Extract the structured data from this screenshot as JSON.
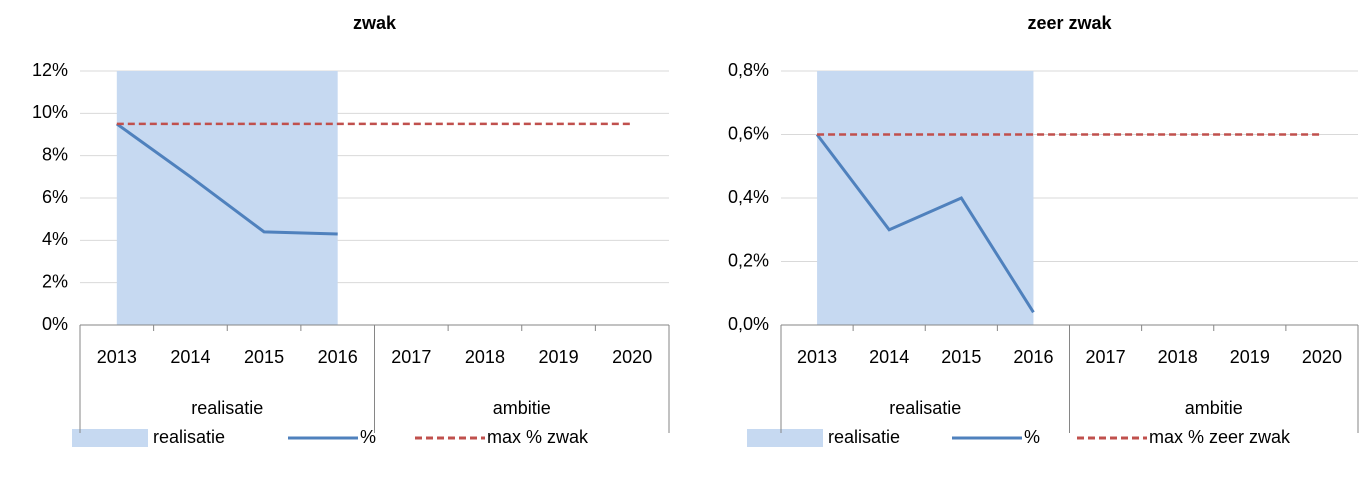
{
  "chart_data": [
    {
      "type": "line",
      "title": "zwak",
      "categories": [
        "2013",
        "2014",
        "2015",
        "2016",
        "2017",
        "2018",
        "2019",
        "2020"
      ],
      "group_labels": [
        "realisatie",
        "ambitie"
      ],
      "ylim": [
        0,
        12
      ],
      "yticks": [
        {
          "value": 0,
          "label": "0%"
        },
        {
          "value": 2,
          "label": "2%"
        },
        {
          "value": 4,
          "label": "4%"
        },
        {
          "value": 6,
          "label": "6%"
        },
        {
          "value": 8,
          "label": "8%"
        },
        {
          "value": 10,
          "label": "10%"
        },
        {
          "value": 12,
          "label": "12%"
        }
      ],
      "grid": true,
      "series": [
        {
          "name": "realisatie",
          "kind": "area",
          "color": "#c6d9f1",
          "values": [
            12,
            12,
            12,
            12,
            null,
            null,
            null,
            null
          ]
        },
        {
          "name": "%",
          "kind": "line",
          "color": "#4f81bd",
          "values": [
            9.5,
            7.0,
            4.4,
            4.3,
            null,
            null,
            null,
            null
          ]
        },
        {
          "name": "max % zwak",
          "kind": "dashed",
          "color": "#c0504d",
          "values": [
            9.5,
            9.5,
            9.5,
            9.5,
            9.5,
            9.5,
            9.5,
            9.5
          ]
        }
      ]
    },
    {
      "type": "line",
      "title": "zeer zwak",
      "categories": [
        "2013",
        "2014",
        "2015",
        "2016",
        "2017",
        "2018",
        "2019",
        "2020"
      ],
      "group_labels": [
        "realisatie",
        "ambitie"
      ],
      "ylim": [
        0,
        0.8
      ],
      "yticks": [
        {
          "value": 0,
          "label": "0,0%"
        },
        {
          "value": 0.2,
          "label": "0,2%"
        },
        {
          "value": 0.4,
          "label": "0,4%"
        },
        {
          "value": 0.6,
          "label": "0,6%"
        },
        {
          "value": 0.8,
          "label": "0,8%"
        }
      ],
      "grid": true,
      "series": [
        {
          "name": "realisatie",
          "kind": "area",
          "color": "#c6d9f1",
          "values": [
            0.8,
            0.8,
            0.8,
            0.8,
            null,
            null,
            null,
            null
          ]
        },
        {
          "name": "%",
          "kind": "line",
          "color": "#4f81bd",
          "values": [
            0.6,
            0.3,
            0.4,
            0.04,
            null,
            null,
            null,
            null
          ]
        },
        {
          "name": "max % zeer zwak",
          "kind": "dashed",
          "color": "#c0504d",
          "values": [
            0.6,
            0.6,
            0.6,
            0.6,
            0.6,
            0.6,
            0.6,
            0.6
          ]
        }
      ]
    }
  ]
}
